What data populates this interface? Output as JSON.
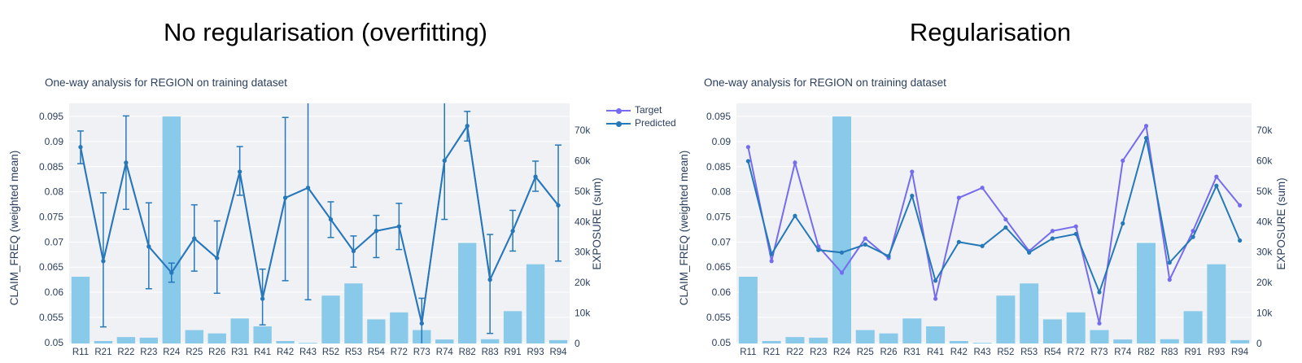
{
  "panels": [
    {
      "title": "No regularisation (overfitting)"
    },
    {
      "title": "Regularisation"
    }
  ],
  "legend": {
    "items": [
      {
        "label": "Target",
        "color": "#766CEE"
      },
      {
        "label": "Predicted",
        "color": "#2579B9"
      }
    ]
  },
  "colors": {
    "bar": "#89C9EA",
    "target": "#766CEE",
    "predicted": "#2579B9",
    "plot_bg": "#F0F1F4",
    "grid": "#FFFFFF",
    "axis_text": "#2A3F5F",
    "title_text": "#000000"
  },
  "chart_data": [
    {
      "type": "bar+line",
      "title": "One-way analysis for REGION on training dataset",
      "categories": [
        "R11",
        "R21",
        "R22",
        "R23",
        "R24",
        "R25",
        "R26",
        "R31",
        "R41",
        "R42",
        "R43",
        "R52",
        "R53",
        "R54",
        "R72",
        "R73",
        "R74",
        "R82",
        "R83",
        "R91",
        "R93",
        "R94"
      ],
      "xlabel": "",
      "ylabel_left": "CLAIM_FREQ (weighted mean)",
      "ylabel_right": "EXPOSURE (sum)",
      "ylim_left": [
        0.0498,
        0.0976
      ],
      "ylim_right": [
        0,
        78800
      ],
      "yticks_left": {
        "values": [
          0.05,
          0.055,
          0.06,
          0.065,
          0.07,
          0.075,
          0.08,
          0.085,
          0.09,
          0.095
        ],
        "labels": [
          "0.05",
          "0.055",
          "0.06",
          "0.065",
          "0.07",
          "0.075",
          "0.08",
          "0.085",
          "0.09",
          "0.095"
        ]
      },
      "yticks_right": {
        "values": [
          0,
          10000,
          20000,
          30000,
          40000,
          50000,
          60000,
          70000
        ],
        "labels": [
          "0",
          "10k",
          "20k",
          "30k",
          "40k",
          "50k",
          "60k",
          "70k"
        ]
      },
      "grid": true,
      "legend_position": "right-of-plot",
      "series": [
        {
          "name": "Exposure",
          "type": "bar",
          "axis": "right",
          "values": [
            21900,
            800,
            2100,
            1900,
            74500,
            4400,
            3300,
            8200,
            5600,
            800,
            250,
            15700,
            19700,
            7900,
            10200,
            4400,
            1300,
            33000,
            1400,
            10600,
            26000,
            1100
          ]
        },
        {
          "name": "Target",
          "type": "line",
          "axis": "left",
          "values": [
            0.0889,
            0.0662,
            0.0858,
            0.0691,
            0.0639,
            0.0707,
            0.0668,
            0.084,
            0.0587,
            0.0788,
            0.0808,
            0.0745,
            0.0682,
            0.0722,
            0.0731,
            0.0538,
            0.0862,
            0.0931,
            0.0625,
            0.0722,
            0.083,
            0.0773
          ]
        },
        {
          "name": "Predicted",
          "type": "line",
          "axis": "left",
          "values": [
            0.0889,
            0.0662,
            0.0858,
            0.0691,
            0.0639,
            0.0707,
            0.0668,
            0.084,
            0.0587,
            0.0788,
            0.0808,
            0.0745,
            0.0682,
            0.0722,
            0.0731,
            0.0538,
            0.0862,
            0.0931,
            0.0625,
            0.0722,
            0.083,
            0.0773
          ],
          "error_low": [
            0.0856,
            0.0531,
            0.0765,
            0.0607,
            0.062,
            0.0642,
            0.0598,
            0.0793,
            0.0535,
            0.0623,
            0.0585,
            0.0709,
            0.065,
            0.0669,
            0.0685,
            0.0497,
            0.0745,
            0.0901,
            0.0518,
            0.0682,
            0.0801,
            0.0662
          ],
          "error_high": [
            0.0921,
            0.0798,
            0.0951,
            0.0778,
            0.0658,
            0.0774,
            0.0742,
            0.089,
            0.0646,
            0.0948,
            0.099,
            0.078,
            0.0712,
            0.0753,
            0.0777,
            0.0588,
            0.099,
            0.096,
            0.0715,
            0.0763,
            0.0861,
            0.0893
          ]
        }
      ]
    },
    {
      "type": "bar+line",
      "title": "One-way analysis for REGION on training dataset",
      "categories": [
        "R11",
        "R21",
        "R22",
        "R23",
        "R24",
        "R25",
        "R26",
        "R31",
        "R41",
        "R42",
        "R43",
        "R52",
        "R53",
        "R54",
        "R72",
        "R73",
        "R74",
        "R82",
        "R83",
        "R91",
        "R93",
        "R94"
      ],
      "xlabel": "",
      "ylabel_left": "CLAIM_FREQ (weighted mean)",
      "ylabel_right": "EXPOSURE (sum)",
      "ylim_left": [
        0.0498,
        0.0976
      ],
      "ylim_right": [
        0,
        78800
      ],
      "yticks_left": {
        "values": [
          0.05,
          0.055,
          0.06,
          0.065,
          0.07,
          0.075,
          0.08,
          0.085,
          0.09,
          0.095
        ],
        "labels": [
          "0.05",
          "0.055",
          "0.06",
          "0.065",
          "0.07",
          "0.075",
          "0.08",
          "0.085",
          "0.09",
          "0.095"
        ]
      },
      "yticks_right": {
        "values": [
          0,
          10000,
          20000,
          30000,
          40000,
          50000,
          60000,
          70000
        ],
        "labels": [
          "0",
          "10k",
          "20k",
          "30k",
          "40k",
          "50k",
          "60k",
          "70k"
        ]
      },
      "grid": true,
      "legend_position": "none",
      "series": [
        {
          "name": "Exposure",
          "type": "bar",
          "axis": "right",
          "values": [
            21900,
            800,
            2100,
            1900,
            74500,
            4400,
            3300,
            8200,
            5600,
            800,
            250,
            15700,
            19700,
            7900,
            10200,
            4400,
            1300,
            33000,
            1400,
            10600,
            26000,
            1100
          ]
        },
        {
          "name": "Target",
          "type": "line",
          "axis": "left",
          "values": [
            0.0889,
            0.0662,
            0.0858,
            0.0691,
            0.0639,
            0.0707,
            0.0668,
            0.084,
            0.0587,
            0.0788,
            0.0808,
            0.0745,
            0.0682,
            0.0722,
            0.0731,
            0.0538,
            0.0862,
            0.0931,
            0.0625,
            0.0722,
            0.083,
            0.0773
          ]
        },
        {
          "name": "Predicted",
          "type": "line",
          "axis": "left",
          "values": [
            0.0861,
            0.0676,
            0.0752,
            0.0684,
            0.0679,
            0.0695,
            0.0672,
            0.0792,
            0.0623,
            0.07,
            0.0692,
            0.0729,
            0.0679,
            0.0707,
            0.0716,
            0.06,
            0.0737,
            0.0907,
            0.0659,
            0.071,
            0.0812,
            0.0703
          ]
        }
      ]
    }
  ]
}
